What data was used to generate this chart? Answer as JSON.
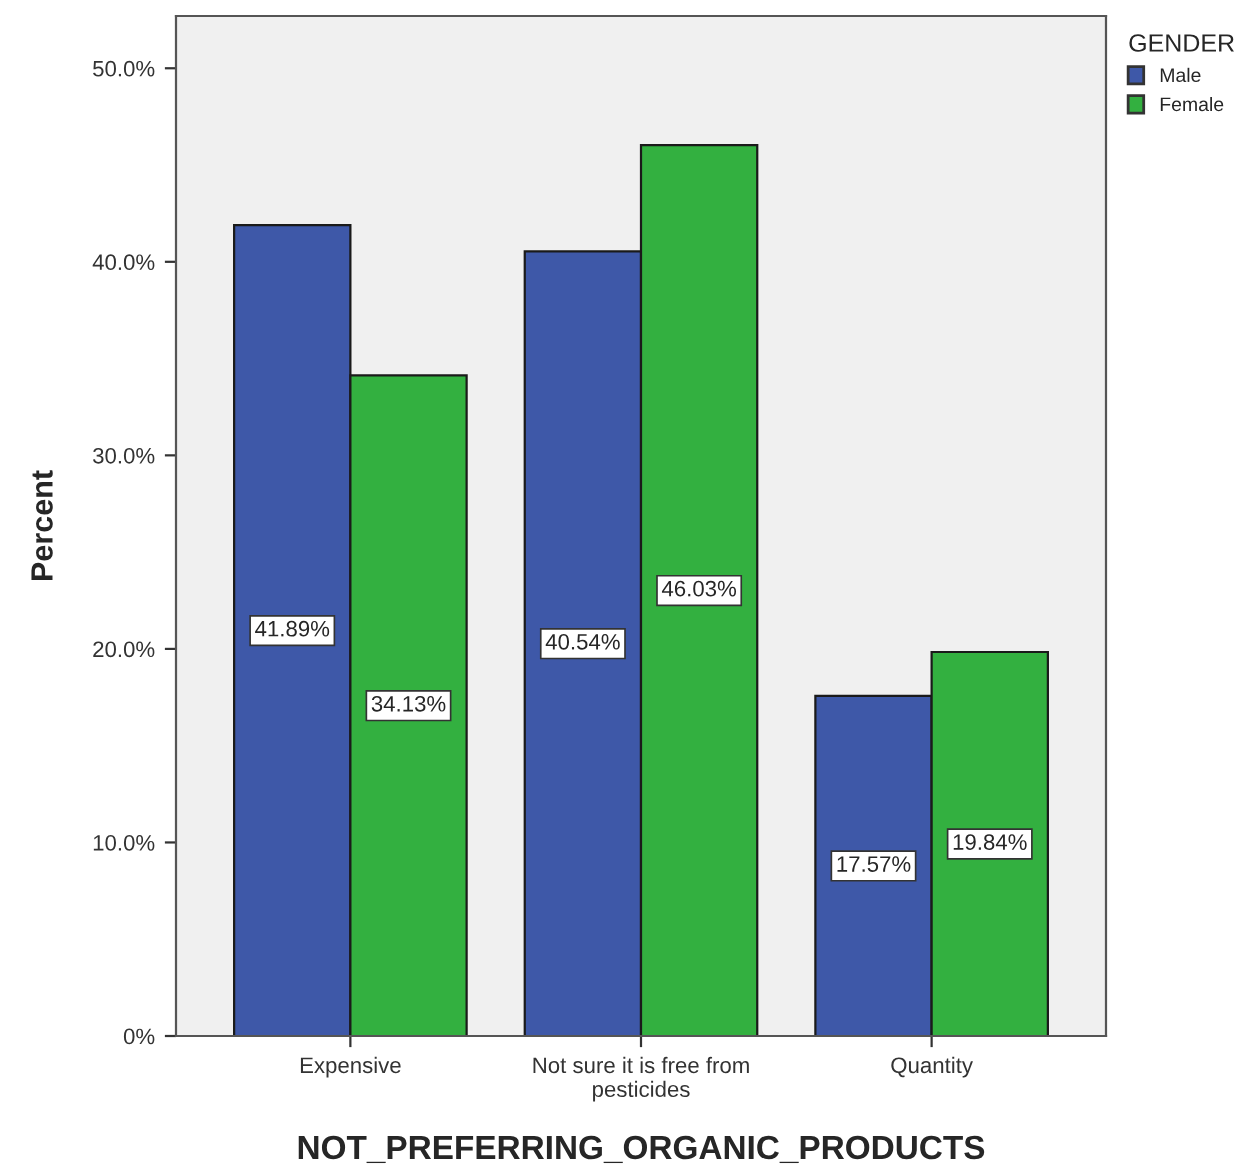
{
  "chart_data": {
    "type": "bar",
    "xlabel": "NOT_PREFERRING_ORGANIC_PRODUCTS",
    "ylabel": "Percent",
    "legend_title": "GENDER",
    "legend": "right",
    "categories": [
      "Expensive",
      "Not sure it is free from\npesticides",
      "Quantity"
    ],
    "series": [
      {
        "name": "Male",
        "color": "#3e58a8",
        "values": [
          41.89,
          40.54,
          17.57
        ],
        "value_labels": [
          "41.89%",
          "40.54%",
          "17.57%"
        ]
      },
      {
        "name": "Female",
        "color": "#33b040",
        "values": [
          34.13,
          46.03,
          19.84
        ],
        "value_labels": [
          "34.13%",
          "46.03%",
          "19.84%"
        ]
      }
    ],
    "ylim": [
      0,
      52.7
    ],
    "yticks": [
      {
        "value": 0,
        "label": "0%"
      },
      {
        "value": 10,
        "label": "10.0%"
      },
      {
        "value": 20,
        "label": "20.0%"
      },
      {
        "value": 30,
        "label": "30.0%"
      },
      {
        "value": 40,
        "label": "40.0%"
      },
      {
        "value": 50,
        "label": "50.0%"
      }
    ],
    "grid": false
  }
}
